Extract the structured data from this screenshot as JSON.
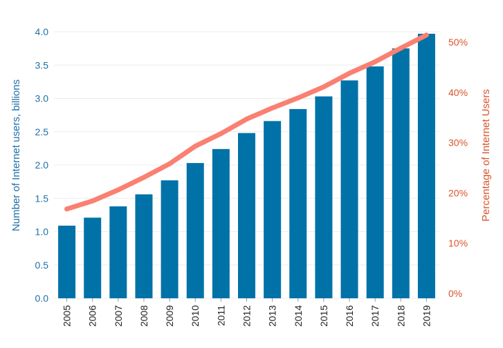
{
  "chart_data": {
    "type": "bar",
    "categories": [
      "2005",
      "2006",
      "2007",
      "2008",
      "2009",
      "2010",
      "2011",
      "2012",
      "2013",
      "2014",
      "2015",
      "2016",
      "2017",
      "2018",
      "2019"
    ],
    "series": [
      {
        "type": "bar",
        "axis": "left",
        "color": "#0072a8",
        "values": [
          1.09,
          1.21,
          1.38,
          1.56,
          1.77,
          2.03,
          2.24,
          2.48,
          2.66,
          2.84,
          3.03,
          3.27,
          3.48,
          3.75,
          3.97
        ]
      },
      {
        "type": "line",
        "axis": "right",
        "color": "#fa8072",
        "values": [
          16.8,
          18.4,
          20.6,
          23.1,
          25.8,
          29.3,
          31.8,
          34.7,
          36.9,
          38.9,
          41.1,
          43.8,
          46.1,
          48.8,
          51.4
        ]
      }
    ],
    "xlabel": "",
    "ylabel": "Number of Internet users, billions",
    "y2label": "Percentage of Internet Users",
    "ylim": [
      0,
      4.0
    ],
    "yticks": [
      "0.0",
      "0.5",
      "1.0",
      "1.5",
      "2.0",
      "2.5",
      "3.0",
      "3.5",
      "4.0"
    ],
    "y2lim": [
      0,
      50
    ],
    "y2ticks": [
      "0%",
      "10%",
      "20%",
      "30%",
      "40%",
      "50%"
    ],
    "grid": true,
    "left_axis_color": "#1f6fa8",
    "right_axis_color": "#d9542b"
  }
}
